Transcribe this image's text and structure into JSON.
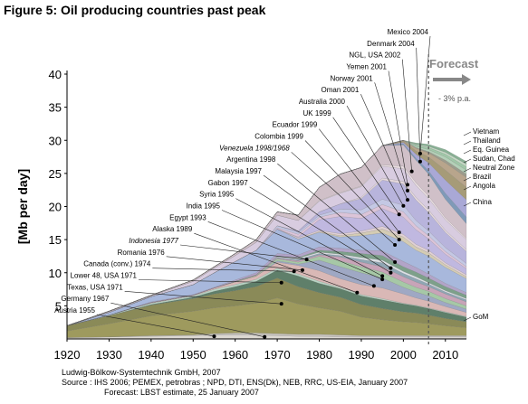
{
  "figure": {
    "title": "Figure 5: Oil producing countries past peak",
    "source_lines": [
      "Ludwig-Bölkow-Systemtechnik GmbH, 2007",
      "Source : IHS 2006; PEMEX, petrobras ;  NPD, DTI, ENS(Dk), NEB, RRC, US-EIA, January 2007",
      "Forecast: LBST estimate, 25 January 2007"
    ]
  },
  "chart_data": {
    "type": "area",
    "ylabel": "[Mb per day]",
    "xlabel": "",
    "xlim": [
      1920,
      2015
    ],
    "ylim": [
      0,
      40
    ],
    "x_ticks": [
      1920,
      1930,
      1940,
      1950,
      1960,
      1970,
      1980,
      1990,
      2000,
      2010
    ],
    "y_ticks": [
      5,
      10,
      15,
      20,
      25,
      30,
      35,
      40
    ],
    "forecast": {
      "label": "Forecast",
      "start_year": 2006,
      "decline_note": "- 3% p.a."
    },
    "years": [
      1920,
      1930,
      1940,
      1950,
      1955,
      1960,
      1965,
      1970,
      1975,
      1980,
      1985,
      1990,
      1995,
      2000,
      2003,
      2006,
      2010,
      2015
    ],
    "series": [
      {
        "name": "Austria 1955",
        "color": "#dcd8d2",
        "values": [
          0.2,
          0.3,
          0.4,
          0.5,
          0.6,
          0.6,
          0.6,
          0.5,
          0.4,
          0.4,
          0.3,
          0.3,
          0.3,
          0.3,
          0.3,
          0.3,
          0.3,
          0.3
        ]
      },
      {
        "name": "Germany 1967",
        "color": "#c8c4bf",
        "values": [
          0,
          0,
          0.1,
          0.1,
          0.2,
          0.3,
          0.3,
          0.3,
          0.3,
          0.3,
          0.3,
          0.2,
          0.2,
          0.2,
          0.2,
          0.2,
          0.2,
          0.2
        ]
      },
      {
        "name": "Texas, USA 1971",
        "color": "#9e9a5e",
        "values": [
          1.0,
          2.0,
          3.0,
          3.6,
          3.9,
          4.1,
          4.5,
          5.4,
          4.6,
          4.0,
          3.6,
          2.8,
          2.4,
          2.1,
          2.0,
          1.8,
          1.5,
          1.2
        ]
      },
      {
        "name": "Lower 48, USA 1971",
        "color": "#8a8a58",
        "values": [
          0.8,
          1.2,
          1.6,
          1.9,
          2.1,
          2.3,
          2.5,
          3.0,
          2.6,
          2.3,
          2.1,
          1.9,
          1.7,
          1.5,
          1.4,
          1.3,
          1.1,
          0.9
        ]
      },
      {
        "name": "Canada (conv.) 1974",
        "color": "#5f7f6a",
        "values": [
          0,
          0,
          0.1,
          0.2,
          0.4,
          0.6,
          0.8,
          1.2,
          1.6,
          1.4,
          1.3,
          1.3,
          1.3,
          1.2,
          1.1,
          1.0,
          0.9,
          0.7
        ]
      },
      {
        "name": "Romania 1976",
        "color": "#b8d4c4",
        "values": [
          0,
          0.1,
          0.2,
          0.2,
          0.3,
          0.3,
          0.3,
          0.3,
          0.3,
          0.3,
          0.2,
          0.2,
          0.2,
          0.1,
          0.1,
          0.1,
          0.1,
          0.1
        ]
      },
      {
        "name": "Indonesia 1977",
        "color": "#d9b8b6",
        "values": [
          0,
          0,
          0.1,
          0.1,
          0.2,
          0.4,
          0.5,
          0.9,
          1.3,
          1.6,
          1.3,
          1.5,
          1.6,
          1.4,
          1.1,
          1.0,
          0.8,
          0.6
        ]
      },
      {
        "name": "Alaska 1989",
        "color": "#9fa8c4",
        "values": [
          0,
          0,
          0,
          0,
          0,
          0,
          0,
          0.2,
          0.2,
          1.6,
          1.8,
          1.8,
          1.5,
          1.0,
          0.9,
          0.8,
          0.6,
          0.5
        ]
      },
      {
        "name": "Egypt 1993",
        "color": "#a6c8a6",
        "values": [
          0,
          0,
          0,
          0,
          0,
          0.1,
          0.1,
          0.3,
          0.3,
          0.6,
          0.9,
          0.9,
          0.9,
          0.8,
          0.7,
          0.7,
          0.6,
          0.5
        ]
      },
      {
        "name": "India 1995",
        "color": "#c8a4b8",
        "values": [
          0,
          0,
          0,
          0,
          0,
          0,
          0.1,
          0.1,
          0.2,
          0.2,
          0.6,
          0.7,
          0.8,
          0.8,
          0.8,
          0.7,
          0.7,
          0.6
        ]
      },
      {
        "name": "Syria 1995",
        "color": "#8fa6b4",
        "values": [
          0,
          0,
          0,
          0,
          0,
          0,
          0,
          0.1,
          0.2,
          0.2,
          0.2,
          0.4,
          0.6,
          0.5,
          0.5,
          0.4,
          0.3,
          0.3
        ]
      },
      {
        "name": "Gabon 1997",
        "color": "#dce0e6",
        "values": [
          0,
          0,
          0,
          0,
          0,
          0,
          0,
          0.1,
          0.2,
          0.2,
          0.2,
          0.3,
          0.4,
          0.3,
          0.3,
          0.2,
          0.2,
          0.2
        ]
      },
      {
        "name": "Malaysia 1997",
        "color": "#7da08a",
        "values": [
          0,
          0,
          0,
          0,
          0,
          0,
          0,
          0.1,
          0.1,
          0.3,
          0.4,
          0.6,
          0.7,
          0.7,
          0.7,
          0.7,
          0.6,
          0.5
        ]
      },
      {
        "name": "Argentina 1998",
        "color": "#b2a4c8",
        "values": [
          0,
          0,
          0.1,
          0.1,
          0.1,
          0.2,
          0.3,
          0.4,
          0.4,
          0.5,
          0.5,
          0.5,
          0.7,
          0.8,
          0.7,
          0.6,
          0.5,
          0.4
        ]
      },
      {
        "name": "Venezuela 1998/1968",
        "color": "#a8b8dc",
        "values": [
          0,
          0.4,
          0.8,
          1.5,
          2.2,
          2.8,
          3.4,
          3.7,
          2.4,
          2.2,
          1.7,
          2.2,
          2.7,
          3.0,
          2.6,
          2.7,
          2.4,
          2.1
        ]
      },
      {
        "name": "Colombia 1999",
        "color": "#d4ccb4",
        "values": [
          0,
          0,
          0,
          0,
          0,
          0,
          0,
          0,
          0,
          0.1,
          0.2,
          0.4,
          0.6,
          0.7,
          0.5,
          0.5,
          0.4,
          0.3
        ]
      },
      {
        "name": "Ecuador 1999",
        "color": "#e0d0d4",
        "values": [
          0,
          0,
          0,
          0,
          0,
          0,
          0,
          0,
          0.2,
          0.2,
          0.3,
          0.3,
          0.4,
          0.4,
          0.4,
          0.4,
          0.3,
          0.3
        ]
      },
      {
        "name": "UK 1999",
        "color": "#c0b8e0",
        "values": [
          0,
          0,
          0,
          0,
          0,
          0,
          0,
          0,
          0.1,
          1.6,
          2.6,
          1.9,
          2.7,
          2.6,
          2.2,
          1.7,
          1.3,
          0.9
        ]
      },
      {
        "name": "Australia 2000",
        "color": "#dcc4d8",
        "values": [
          0,
          0,
          0,
          0,
          0,
          0,
          0,
          0.2,
          0.4,
          0.4,
          0.6,
          0.6,
          0.6,
          0.8,
          0.6,
          0.5,
          0.4,
          0.3
        ]
      },
      {
        "name": "Oman 2001",
        "color": "#c4c8e4",
        "values": [
          0,
          0,
          0,
          0,
          0,
          0,
          0,
          0.3,
          0.3,
          0.3,
          0.5,
          0.7,
          0.8,
          1.0,
          0.8,
          0.7,
          0.6,
          0.5
        ]
      },
      {
        "name": "Norway 2001",
        "color": "#b8b4dc",
        "values": [
          0,
          0,
          0,
          0,
          0,
          0,
          0,
          0,
          0.2,
          0.5,
          0.8,
          1.7,
          2.9,
          3.2,
          3.1,
          2.8,
          2.3,
          1.8
        ]
      },
      {
        "name": "Yemen 2001",
        "color": "#e4d8dc",
        "values": [
          0,
          0,
          0,
          0,
          0,
          0,
          0,
          0,
          0,
          0,
          0,
          0.2,
          0.3,
          0.4,
          0.4,
          0.4,
          0.3,
          0.3
        ]
      },
      {
        "name": "NGL, USA 2002",
        "color": "#d8cce0",
        "values": [
          0,
          0.1,
          0.1,
          0.5,
          0.7,
          0.9,
          1.2,
          1.6,
          1.6,
          1.6,
          1.6,
          1.6,
          1.8,
          1.9,
          1.8,
          1.7,
          1.6,
          1.5
        ]
      },
      {
        "name": "Denmark 2004",
        "color": "#e8dce0",
        "values": [
          0,
          0,
          0,
          0,
          0,
          0,
          0,
          0,
          0,
          0.1,
          0.1,
          0.1,
          0.2,
          0.4,
          0.4,
          0.4,
          0.3,
          0.2
        ]
      },
      {
        "name": "Mexico 2004",
        "color": "#d0c0c8",
        "values": [
          0,
          0.1,
          0.1,
          0.2,
          0.2,
          0.3,
          0.4,
          0.5,
          0.8,
          2.0,
          2.8,
          2.8,
          2.9,
          3.2,
          3.4,
          3.3,
          2.8,
          2.2
        ]
      },
      {
        "name": "GoM",
        "color": "#7f9ab8",
        "values": [
          0,
          0,
          0,
          0,
          0,
          0,
          0,
          0,
          0,
          0,
          0,
          0,
          0,
          0.2,
          0.3,
          0.5,
          0.9,
          1.0
        ]
      },
      {
        "name": "China",
        "color": "#a9a8d6",
        "values": [
          0,
          0,
          0,
          0,
          0,
          0,
          0,
          0,
          0,
          0,
          0,
          0,
          0,
          0.2,
          0.6,
          1.2,
          2.0,
          2.6
        ]
      },
      {
        "name": "Angola",
        "color": "#a69b78",
        "values": [
          0,
          0,
          0,
          0,
          0,
          0,
          0,
          0,
          0,
          0,
          0,
          0,
          0,
          0.2,
          0.5,
          0.9,
          1.5,
          1.9
        ]
      },
      {
        "name": "Brazil",
        "color": "#b8a58c",
        "values": [
          0,
          0,
          0,
          0,
          0,
          0,
          0,
          0,
          0,
          0,
          0,
          0,
          0,
          0.1,
          0.4,
          0.6,
          1.1,
          1.5
        ]
      },
      {
        "name": "Neutral Zone",
        "color": "#9c9c8c",
        "values": [
          0,
          0,
          0,
          0,
          0,
          0,
          0,
          0,
          0,
          0,
          0,
          0,
          0,
          0,
          0.1,
          0.2,
          0.4,
          0.5
        ]
      },
      {
        "name": "Sudan, Chad",
        "color": "#b4d0b8",
        "values": [
          0,
          0,
          0,
          0,
          0,
          0,
          0,
          0,
          0,
          0,
          0,
          0,
          0,
          0,
          0.2,
          0.3,
          0.5,
          0.6
        ]
      },
      {
        "name": "Eq. Guinea",
        "color": "#a0c8a8",
        "values": [
          0,
          0,
          0,
          0,
          0,
          0,
          0,
          0,
          0,
          0,
          0,
          0,
          0,
          0,
          0.2,
          0.3,
          0.4,
          0.5
        ]
      },
      {
        "name": "Thailand",
        "color": "#c4d8c4",
        "values": [
          0,
          0,
          0,
          0,
          0,
          0,
          0,
          0,
          0,
          0,
          0,
          0,
          0,
          0,
          0.1,
          0.2,
          0.3,
          0.4
        ]
      },
      {
        "name": "Vietnam",
        "color": "#88b094",
        "values": [
          0,
          0,
          0,
          0,
          0,
          0,
          0,
          0,
          0,
          0,
          0,
          0,
          0,
          0,
          0.2,
          0.3,
          0.4,
          0.4
        ]
      }
    ],
    "peak_labels": [
      {
        "text": "Mexico 2004",
        "peak_year": 2004,
        "peak_value": 28.0
      },
      {
        "text": "Denmark 2004",
        "peak_year": 2004,
        "peak_value": 26.8
      },
      {
        "text": "NGL, USA 2002",
        "peak_year": 2002,
        "peak_value": 25.3
      },
      {
        "text": "Yemen 2001",
        "peak_year": 2001,
        "peak_value": 23.3
      },
      {
        "text": "Norway 2001",
        "peak_year": 2001,
        "peak_value": 22.4
      },
      {
        "text": "Oman 2001",
        "peak_year": 2001,
        "peak_value": 21.0
      },
      {
        "text": "Australia 2000",
        "peak_year": 2000,
        "peak_value": 20.1
      },
      {
        "text": "UK 1999",
        "peak_year": 1999,
        "peak_value": 18.8
      },
      {
        "text": "Ecuador 1999",
        "peak_year": 1999,
        "peak_value": 16.1
      },
      {
        "text": "Colombia 1999",
        "peak_year": 1999,
        "peak_value": 15.0
      },
      {
        "text": "Venezuela 1998/1968",
        "peak_year": 1998,
        "peak_value": 14.2,
        "italic": true
      },
      {
        "text": "Argentina 1998",
        "peak_year": 1998,
        "peak_value": 11.6
      },
      {
        "text": "Malaysia 1997",
        "peak_year": 1997,
        "peak_value": 10.7
      },
      {
        "text": "Gabon 1997",
        "peak_year": 1997,
        "peak_value": 10.0
      },
      {
        "text": "Syria 1995",
        "peak_year": 1995,
        "peak_value": 9.5
      },
      {
        "text": "India 1995",
        "peak_year": 1995,
        "peak_value": 9.0
      },
      {
        "text": "Egypt 1993",
        "peak_year": 1993,
        "peak_value": 8.0
      },
      {
        "text": "Alaska 1989",
        "peak_year": 1989,
        "peak_value": 7.0
      },
      {
        "text": "Indonesia 1977",
        "peak_year": 1977,
        "peak_value": 12.0,
        "italic": true
      },
      {
        "text": "Romania 1976",
        "peak_year": 1976,
        "peak_value": 10.4
      },
      {
        "text": "Canada (conv.) 1974",
        "peak_year": 1974,
        "peak_value": 10.2
      },
      {
        "text": "Lower 48, USA  1971",
        "peak_year": 1971,
        "peak_value": 8.5
      },
      {
        "text": "Texas, USA 1971",
        "peak_year": 1971,
        "peak_value": 5.3
      },
      {
        "text": "Germany 1967",
        "peak_year": 1967,
        "peak_value": 0.3
      },
      {
        "text": "Austria 1955",
        "peak_year": 1955,
        "peak_value": 0.4
      }
    ],
    "right_labels": [
      "Vietnam",
      "Thailand",
      "Eq. Guinea",
      "Sudan, Chad",
      "Neutral Zone",
      "Brazil",
      "Angola",
      "China",
      "GoM"
    ],
    "grid": false,
    "legend": "none"
  }
}
